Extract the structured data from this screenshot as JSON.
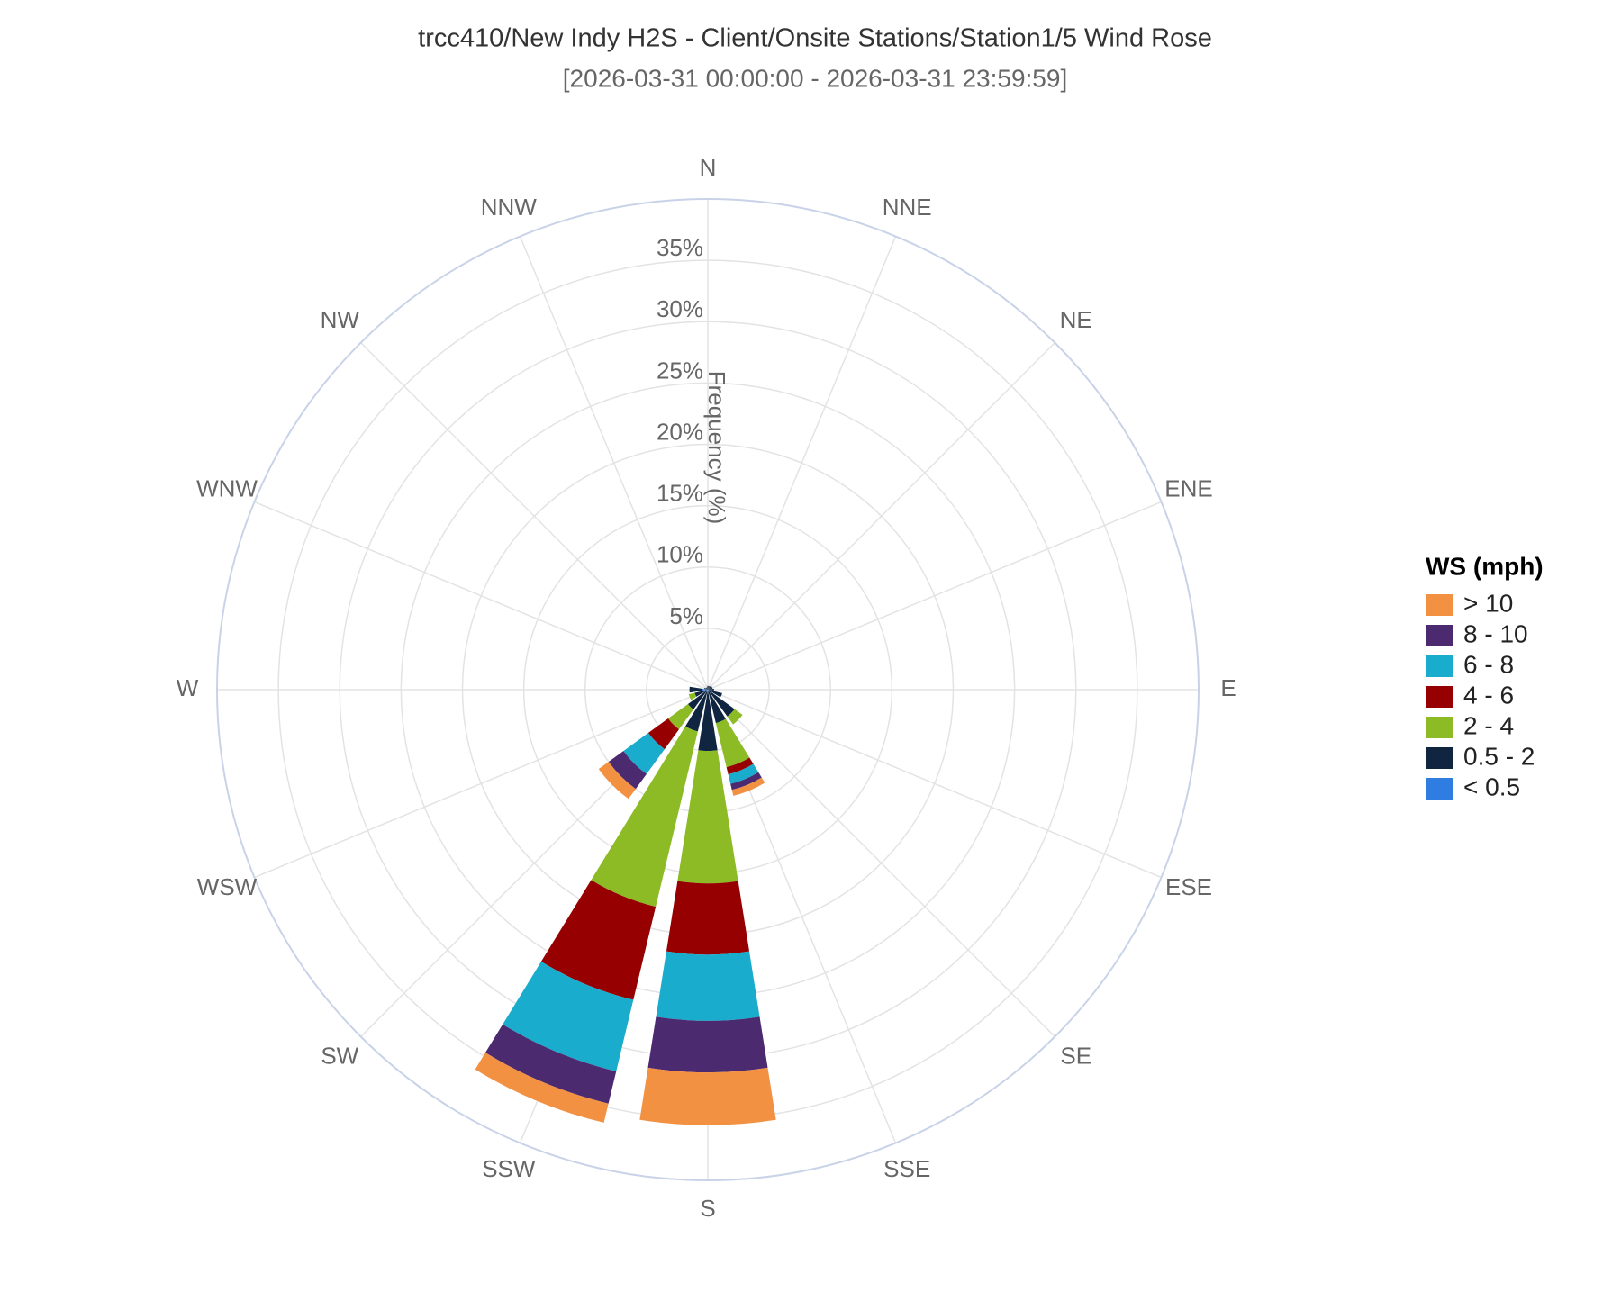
{
  "chart_data": {
    "type": "windrose",
    "title": "trcc410/New Indy H2S - Client/Onsite Stations/Station1/5 Wind Rose",
    "subtitle": "[2026-03-31 00:00:00 - 2026-03-31 23:59:59]",
    "radial_axis_label": "Frequency (%)",
    "legend_title": "WS (mph)",
    "legend_position": "right",
    "grid": true,
    "categories": [
      "N",
      "NNE",
      "NE",
      "ENE",
      "E",
      "ESE",
      "SE",
      "SSE",
      "S",
      "SSW",
      "SW",
      "WSW",
      "W",
      "WNW",
      "NW",
      "NNW"
    ],
    "ylim": [
      0,
      40
    ],
    "yticks": [
      {
        "value": 5,
        "label": "5%"
      },
      {
        "value": 10,
        "label": "10%"
      },
      {
        "value": 15,
        "label": "15%"
      },
      {
        "value": 20,
        "label": "20%"
      },
      {
        "value": 25,
        "label": "25%"
      },
      {
        "value": 30,
        "label": "30%"
      },
      {
        "value": 35,
        "label": "35%"
      }
    ],
    "series": [
      {
        "name": "> 10",
        "color": "#f39143",
        "values": [
          0,
          0,
          0,
          0,
          0,
          0,
          0,
          0.5,
          4.3,
          1.6,
          1,
          0,
          0,
          0,
          0,
          0
        ]
      },
      {
        "name": "8 - 10",
        "color": "#4b2a6f",
        "values": [
          0,
          0,
          0,
          0,
          0,
          0,
          0,
          0.5,
          4.2,
          2.7,
          1.5,
          0,
          0,
          0,
          0,
          0
        ]
      },
      {
        "name": "6 - 8",
        "color": "#1aaccc",
        "values": [
          0,
          0,
          0,
          0,
          0,
          0,
          0,
          0.8,
          5.4,
          6,
          2.5,
          0,
          0,
          0,
          0,
          0
        ]
      },
      {
        "name": "4 - 6",
        "color": "#960000",
        "values": [
          0,
          0,
          0,
          0,
          0,
          0,
          0,
          0.6,
          5.8,
          7.8,
          2,
          0,
          0,
          0,
          0,
          0
        ]
      },
      {
        "name": "2 - 4",
        "color": "#8cbb25",
        "values": [
          0,
          0,
          0,
          0,
          0,
          0,
          0.8,
          3.7,
          10.8,
          14.7,
          2,
          0.5,
          0,
          0,
          0,
          0
        ]
      },
      {
        "name": "0.5 - 2",
        "color": "#0f2540",
        "values": [
          0.3,
          0.3,
          0.4,
          0.4,
          0.5,
          1.2,
          2.6,
          2.7,
          4.8,
          3.3,
          1.9,
          1,
          1,
          0.3,
          0.2,
          0.2
        ]
      },
      {
        "name": "< 0.5",
        "color": "#2f7de1",
        "values": [
          0,
          0,
          0,
          0,
          0,
          0,
          0.1,
          0.1,
          0.2,
          0.2,
          0.1,
          0.1,
          0.5,
          0,
          0,
          0
        ]
      }
    ]
  }
}
